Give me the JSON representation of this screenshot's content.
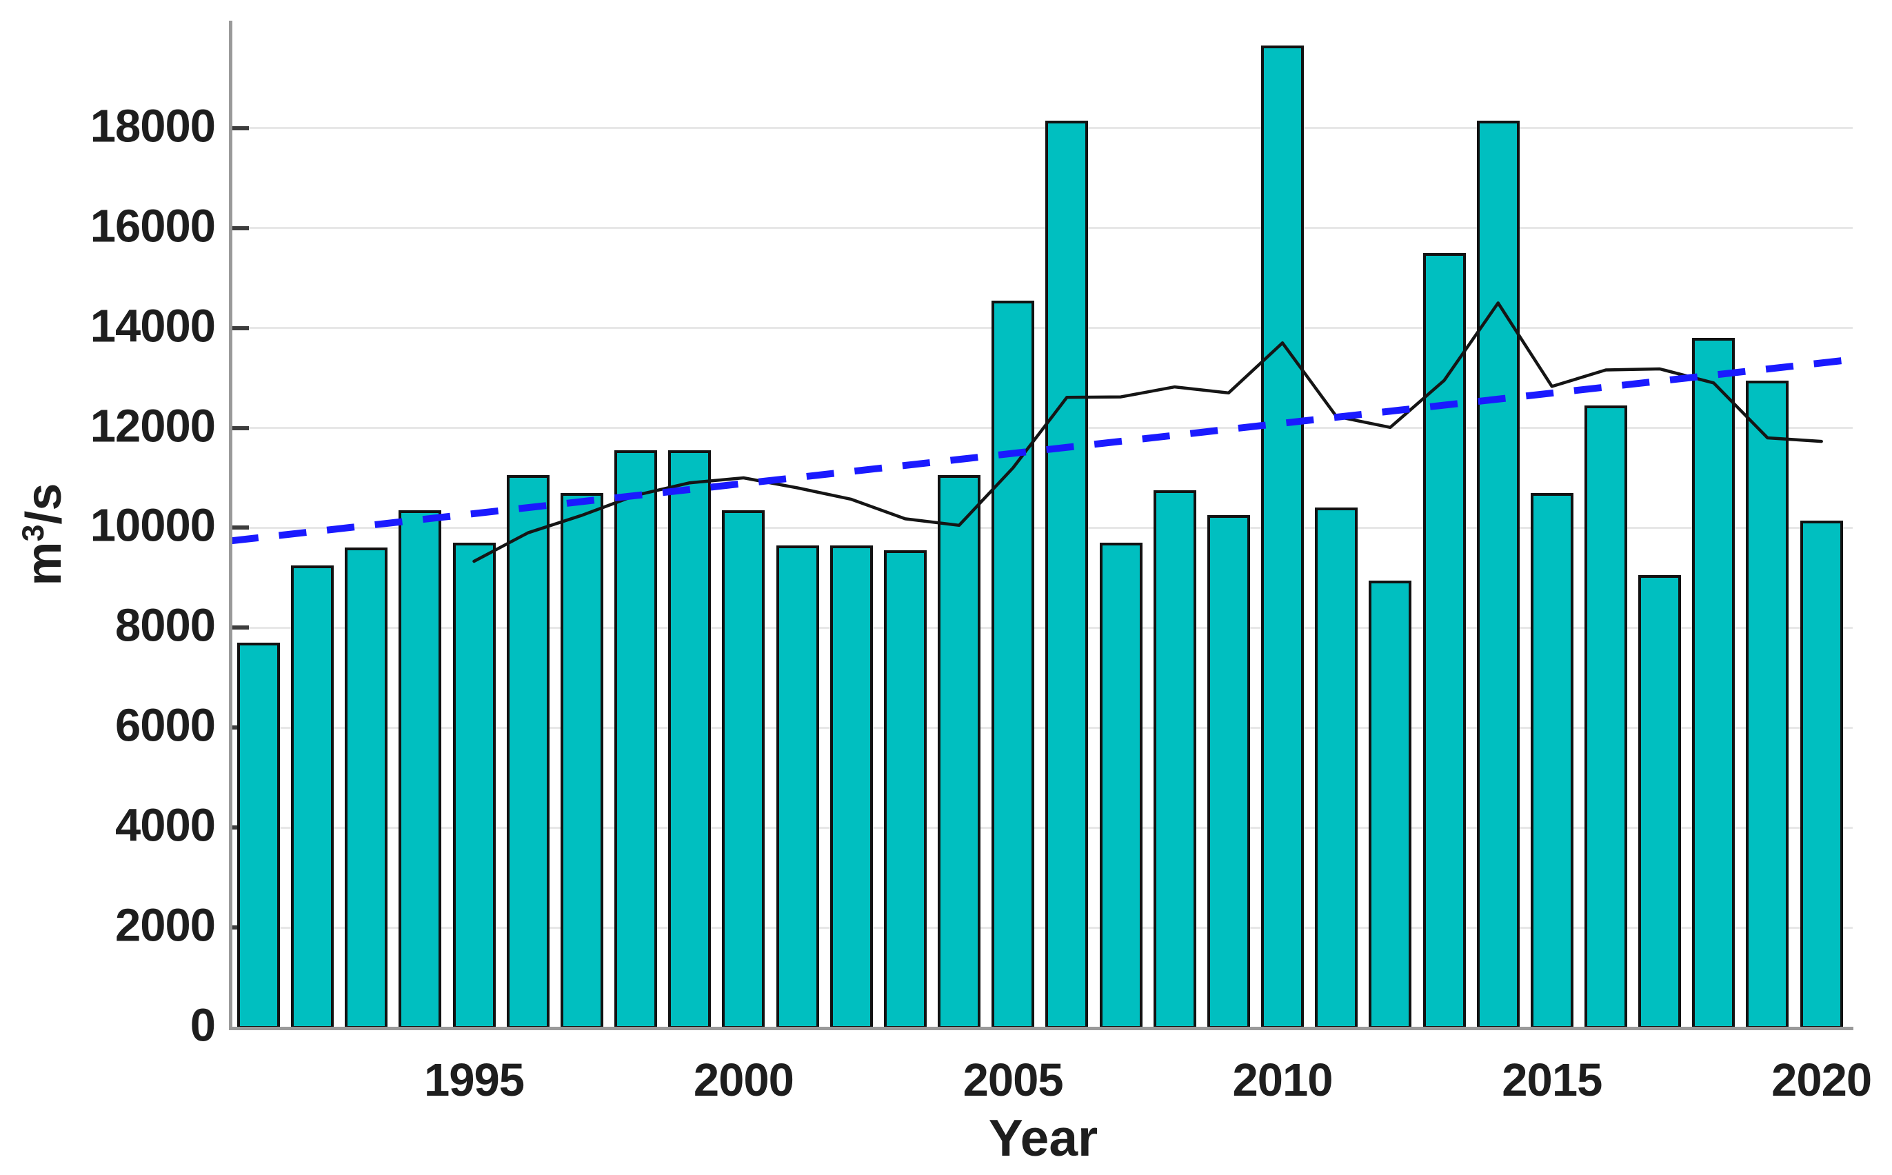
{
  "axes": {
    "x_title": "Year",
    "y_title_prefix": "m",
    "y_title_sup": "3",
    "y_title_suffix": "/s"
  },
  "chart_data": {
    "type": "bar",
    "title": "",
    "xlabel": "Year",
    "ylabel": "m^3/s",
    "grid": "horizontal",
    "legend": "none",
    "xlim": [
      1990.49,
      2020.58
    ],
    "ylim": [
      0,
      20150
    ],
    "xticks": [
      1995,
      2000,
      2005,
      2010,
      2015,
      2020
    ],
    "yticks": [
      0,
      2000,
      4000,
      6000,
      8000,
      10000,
      12000,
      14000,
      16000,
      18000
    ],
    "categories": [
      1991,
      1992,
      1993,
      1994,
      1995,
      1996,
      1997,
      1998,
      1999,
      2000,
      2001,
      2002,
      2003,
      2004,
      2005,
      2006,
      2007,
      2008,
      2009,
      2010,
      2011,
      2012,
      2013,
      2014,
      2015,
      2016,
      2017,
      2018,
      2019,
      2020
    ],
    "series": [
      {
        "name": "annual-discharge-bars",
        "type": "bar",
        "color": "#00bfc0",
        "edge_color": "#121212",
        "values": [
          7700,
          9250,
          9600,
          10350,
          9700,
          11050,
          10700,
          11550,
          11550,
          10350,
          9650,
          9650,
          9550,
          11050,
          14550,
          18150,
          9700,
          10750,
          10250,
          19650,
          10400,
          8950,
          15500,
          18150,
          10700,
          12450,
          9050,
          13800,
          12950,
          10150
        ]
      },
      {
        "name": "5yr-moving-average-line",
        "type": "line",
        "color": "#151515",
        "x": [
          1995,
          1996,
          1997,
          1998,
          1999,
          2000,
          2001,
          2002,
          2003,
          2004,
          2005,
          2006,
          2007,
          2008,
          2009,
          2010,
          2011,
          2012,
          2013,
          2014,
          2015,
          2016,
          2017,
          2018,
          2019,
          2020
        ],
        "values": [
          9330,
          9900,
          10250,
          10650,
          10900,
          11000,
          10800,
          10570,
          10180,
          10050,
          11200,
          12610,
          12620,
          12820,
          12700,
          13700,
          12230,
          12010,
          12950,
          14500,
          12830,
          13160,
          13180,
          12900,
          11800,
          11730
        ]
      },
      {
        "name": "linear-trend-line",
        "type": "dashed-line",
        "color": "#1a1aff",
        "x": [
          1990.49,
          2020.58
        ],
        "values": [
          9740,
          13370
        ]
      }
    ],
    "colors": {
      "background": "#ffffff",
      "gridline": "#e7e7e7",
      "axis_spine": "#9a9a9a",
      "tick_mark": "#3d3d3d",
      "tick_text": "#1e1e1e"
    }
  }
}
